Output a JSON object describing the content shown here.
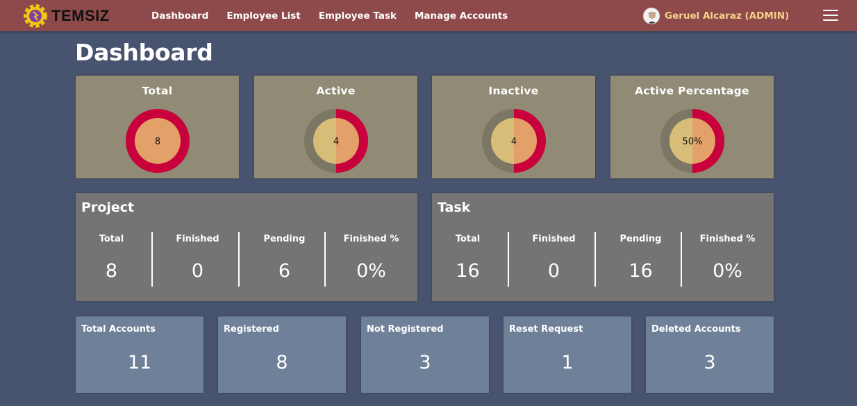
{
  "brand": {
    "name": "TEMSIZ"
  },
  "nav": {
    "links": [
      "Dashboard",
      "Employee List",
      "Employee Task",
      "Manage Accounts"
    ]
  },
  "user": {
    "name": "Geruel Alcaraz (ADMIN)",
    "avatar_icon": "user-avatar-icon"
  },
  "page": {
    "title": "Dashboard"
  },
  "employees": {
    "cards": [
      {
        "title": "Total",
        "value": "8",
        "fraction": 1.0
      },
      {
        "title": "Active",
        "value": "4",
        "fraction": 0.5
      },
      {
        "title": "Inactive",
        "value": "4",
        "fraction": 0.5
      },
      {
        "title": "Active Percentage",
        "value": "50%",
        "fraction": 0.5
      }
    ]
  },
  "project": {
    "title": "Project",
    "stats": [
      {
        "label": "Total",
        "value": "8"
      },
      {
        "label": "Finished",
        "value": "0"
      },
      {
        "label": "Pending",
        "value": "6"
      },
      {
        "label": "Finished %",
        "value": "0%"
      }
    ]
  },
  "task": {
    "title": "Task",
    "stats": [
      {
        "label": "Total",
        "value": "16"
      },
      {
        "label": "Finished",
        "value": "0"
      },
      {
        "label": "Pending",
        "value": "16"
      },
      {
        "label": "Finished %",
        "value": "0%"
      }
    ]
  },
  "accounts": [
    {
      "label": "Total Accounts",
      "value": "11"
    },
    {
      "label": "Registered",
      "value": "8"
    },
    {
      "label": "Not Registered",
      "value": "3"
    },
    {
      "label": "Reset Request",
      "value": "1"
    },
    {
      "label": "Deleted Accounts",
      "value": "3"
    }
  ],
  "colors": {
    "navbar": "#8e4a4a",
    "background": "#48546f",
    "ring_card": "#918a74",
    "ring_track": "#7c7665",
    "ring_progress": "#c8003c",
    "ring_center": "#e3a169",
    "ring_center_alt": "#d8bd78",
    "panel": "#757373",
    "account_card": "#6f8099",
    "user_name": "#f7d08a"
  }
}
